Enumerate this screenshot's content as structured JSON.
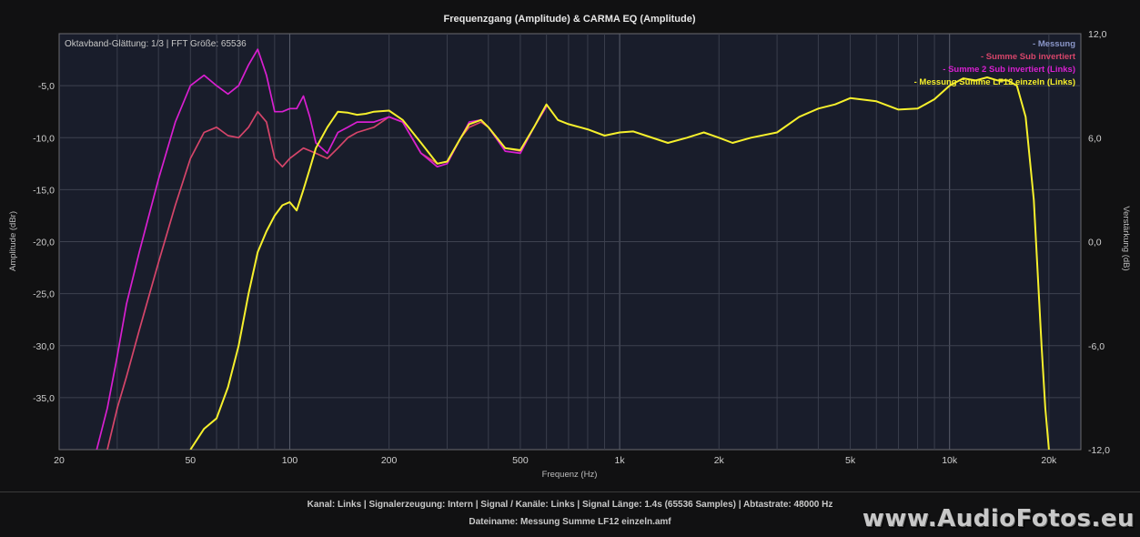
{
  "chart_data": {
    "type": "line",
    "title": "Frequenzgang (Amplitude) & CARMA EQ (Amplitude)",
    "info": "Oktavband-Glättung: 1/3 | FFT Größe: 65536",
    "xlabel": "Frequenz (Hz)",
    "ylabel": "Amplitude (dBr)",
    "y2label": "Verstärkung (dB)",
    "x_scale": "log",
    "xlim": [
      20,
      25000
    ],
    "ylim": [
      -40,
      0
    ],
    "y2lim": [
      -12,
      12
    ],
    "grid": true,
    "legend_position": "top-right",
    "x_ticks": [
      {
        "v": 20,
        "label": "20"
      },
      {
        "v": 50,
        "label": "50"
      },
      {
        "v": 100,
        "label": "100"
      },
      {
        "v": 200,
        "label": "200"
      },
      {
        "v": 500,
        "label": "500"
      },
      {
        "v": 1000,
        "label": "1k"
      },
      {
        "v": 2000,
        "label": "2k"
      },
      {
        "v": 5000,
        "label": "5k"
      },
      {
        "v": 10000,
        "label": "10k"
      },
      {
        "v": 20000,
        "label": "20k"
      }
    ],
    "y_ticks": [
      {
        "v": -5,
        "label": "-5,0"
      },
      {
        "v": -10,
        "label": "-10,0"
      },
      {
        "v": -15,
        "label": "-15,0"
      },
      {
        "v": -20,
        "label": "-20,0"
      },
      {
        "v": -25,
        "label": "-25,0"
      },
      {
        "v": -30,
        "label": "-30,0"
      },
      {
        "v": -35,
        "label": "-35,0"
      }
    ],
    "y2_ticks": [
      {
        "v": 12,
        "label": "12,0"
      },
      {
        "v": 6,
        "label": "6,0"
      },
      {
        "v": 0,
        "label": "0,0"
      },
      {
        "v": -6,
        "label": "-6,0"
      },
      {
        "v": -12,
        "label": "-12,0"
      }
    ],
    "series": [
      {
        "name": "- Messung",
        "color": "#8a96c8",
        "x": [],
        "y": []
      },
      {
        "name": "- Summe Sub invertiert",
        "color": "#d6456a",
        "x": [
          28,
          30,
          32,
          35,
          40,
          45,
          50,
          55,
          60,
          65,
          70,
          75,
          80,
          85,
          90,
          95,
          100,
          110,
          120,
          130,
          140,
          150,
          160,
          180,
          200,
          220,
          250,
          280,
          300,
          330,
          350,
          380,
          400,
          450,
          500,
          550,
          600
        ],
        "y": [
          -40,
          -36,
          -33,
          -28.5,
          -22,
          -16.5,
          -12,
          -9.5,
          -9,
          -9.8,
          -10,
          -9,
          -7.5,
          -8.5,
          -12,
          -12.8,
          -12,
          -11,
          -11.5,
          -12,
          -11,
          -10,
          -9.5,
          -9,
          -8,
          -8.5,
          -11.5,
          -12.5,
          -12.3,
          -10,
          -9,
          -8.5,
          -9,
          -11,
          -11.3,
          -9,
          -7
        ]
      },
      {
        "name": "- Summe 2 Sub invertiert (Links)",
        "color": "#d81fd0",
        "x": [
          26,
          28,
          30,
          32,
          35,
          40,
          45,
          50,
          55,
          60,
          65,
          70,
          75,
          80,
          85,
          90,
          95,
          100,
          105,
          110,
          115,
          120,
          130,
          140,
          150,
          160,
          180,
          200,
          220,
          250,
          280,
          300,
          330,
          350,
          380,
          400,
          450,
          500,
          550,
          600
        ],
        "y": [
          -40,
          -36,
          -31,
          -26,
          -21,
          -14,
          -8.5,
          -5,
          -4,
          -5,
          -5.8,
          -5,
          -3,
          -1.5,
          -4,
          -7.5,
          -7.5,
          -7.2,
          -7.2,
          -6,
          -8,
          -10.5,
          -11.5,
          -9.5,
          -9,
          -8.5,
          -8.5,
          -8,
          -8.5,
          -11.5,
          -12.8,
          -12.5,
          -10,
          -8.5,
          -8.3,
          -9,
          -11.3,
          -11.5,
          -9,
          -7
        ]
      },
      {
        "name": "- Messung Summe LF12 einzeln (Links)",
        "color": "#f6f02c",
        "x": [
          50,
          55,
          60,
          65,
          70,
          75,
          80,
          85,
          90,
          95,
          100,
          105,
          110,
          115,
          120,
          130,
          140,
          150,
          160,
          170,
          180,
          200,
          220,
          250,
          280,
          300,
          330,
          350,
          380,
          400,
          450,
          500,
          550,
          600,
          650,
          700,
          800,
          900,
          1000,
          1100,
          1200,
          1400,
          1600,
          1800,
          2000,
          2200,
          2500,
          3000,
          3500,
          4000,
          4500,
          5000,
          6000,
          7000,
          8000,
          9000,
          10000,
          11000,
          12000,
          13000,
          14000,
          15000,
          16000,
          17000,
          18000,
          19000,
          19500,
          20000
        ],
        "y": [
          -40,
          -38,
          -37,
          -34,
          -30,
          -25,
          -21,
          -19,
          -17.5,
          -16.5,
          -16.2,
          -17,
          -15,
          -13,
          -11,
          -9,
          -7.5,
          -7.6,
          -7.8,
          -7.7,
          -7.5,
          -7.4,
          -8.3,
          -10.5,
          -12.5,
          -12.3,
          -10,
          -8.7,
          -8.3,
          -9,
          -11,
          -11.2,
          -9,
          -6.8,
          -8.3,
          -8.7,
          -9.2,
          -9.8,
          -9.5,
          -9.4,
          -9.8,
          -10.5,
          -10,
          -9.5,
          -10,
          -10.5,
          -10,
          -9.5,
          -8,
          -7.2,
          -6.8,
          -6.2,
          -6.5,
          -7.3,
          -7.2,
          -6.3,
          -5,
          -4.3,
          -4.5,
          -4.2,
          -4.5,
          -4.5,
          -5,
          -8,
          -16,
          -30,
          -36,
          -40
        ]
      }
    ]
  },
  "footer": {
    "line1": "Kanal: Links  |  Signalerzeugung: Intern  |  Signal / Kanäle: Links  |  Signal Länge: 1.4s (65536 Samples)  |  Abtastrate: 48000 Hz",
    "line2": "Dateiname: Messung Summe LF12 einzeln.amf",
    "watermark": "www.AudioFotos.eu"
  }
}
